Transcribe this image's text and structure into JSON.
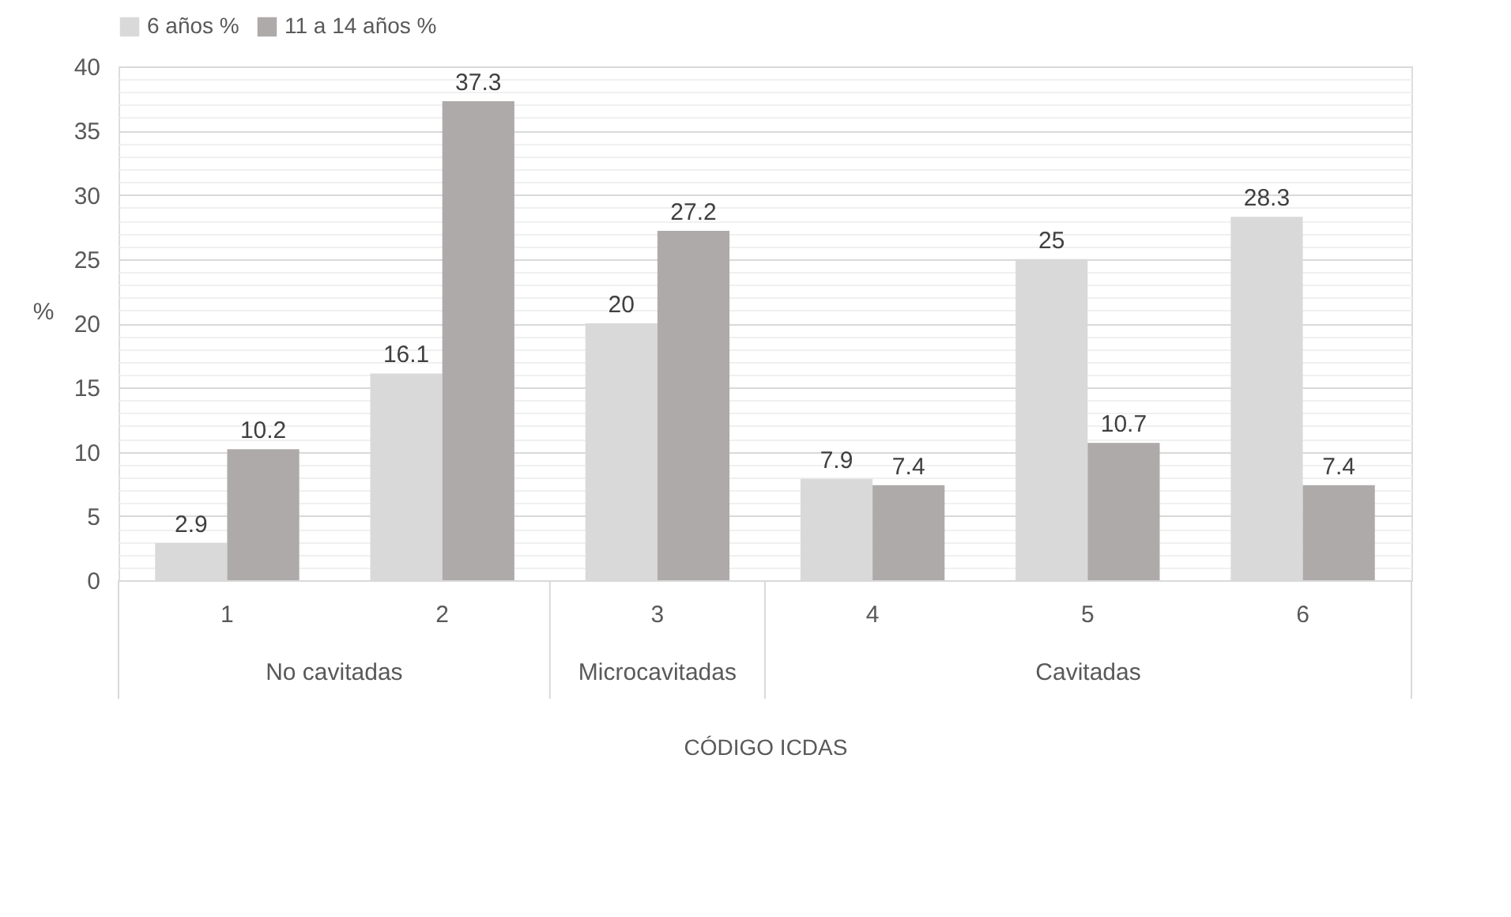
{
  "chart_data": {
    "type": "bar",
    "categories": [
      "1",
      "2",
      "3",
      "4",
      "5",
      "6"
    ],
    "series": [
      {
        "name": "6 años %",
        "color": "#d9d9d9",
        "values": [
          2.9,
          16.1,
          20,
          7.9,
          25,
          28.3
        ]
      },
      {
        "name": "11 a 14 años %",
        "color": "#aeaaaa",
        "values": [
          10.2,
          37.3,
          27.2,
          7.4,
          10.7,
          7.4
        ]
      }
    ],
    "xlabel": "CÓDIGO ICDAS",
    "ylabel": "%",
    "annotations": [
      "No cavitadas",
      "Microcavitadas",
      "Cavitadas"
    ],
    "ylim": [
      0,
      40
    ],
    "yticks": [
      0,
      {
        "value": 1,
        "label": null
      },
      {
        "value": 2,
        "label": null
      },
      {
        "value": 3,
        "label": null
      },
      {
        "value": 4,
        "label": null
      },
      5,
      {
        "value": 6,
        "label": null
      },
      {
        "value": 7,
        "label": null
      },
      {
        "value": 8,
        "label": null
      },
      {
        "value": 9,
        "label": null
      },
      10,
      {
        "value": 11,
        "label": null
      },
      {
        "value": 12,
        "label": null
      },
      {
        "value": 13,
        "label": null
      },
      {
        "value": 14,
        "label": null
      },
      15,
      {
        "value": 16,
        "label": null
      },
      {
        "value": 17,
        "label": null
      },
      {
        "value": 18,
        "label": null
      },
      {
        "value": 19,
        "label": null
      },
      20,
      {
        "value": 21,
        "label": null
      },
      {
        "value": 22,
        "label": null
      },
      {
        "value": 23,
        "label": null
      },
      {
        "value": 24,
        "label": null
      },
      25,
      {
        "value": 26,
        "label": null
      },
      {
        "value": 27,
        "label": null
      },
      {
        "value": 28,
        "label": null
      },
      {
        "value": 29,
        "label": null
      },
      30,
      {
        "value": 31,
        "label": null
      },
      {
        "value": 32,
        "label": null
      },
      {
        "value": 33,
        "label": null
      },
      {
        "value": 34,
        "label": null
      },
      35,
      {
        "value": 36,
        "label": null
      },
      {
        "value": 37,
        "label": null
      },
      {
        "value": 38,
        "label": null
      },
      {
        "value": 39,
        "label": null
      },
      40
    ],
    "grid": "y",
    "legend": "top",
    "data_labels": true
  }
}
